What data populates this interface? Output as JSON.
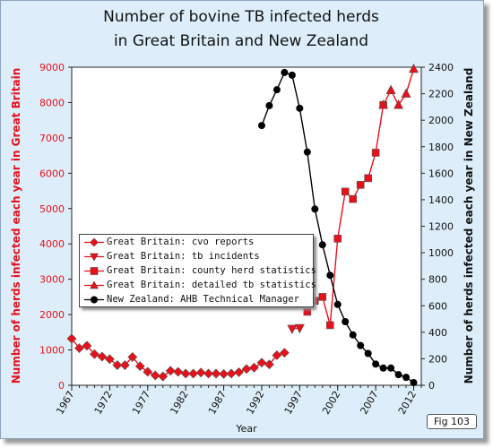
{
  "title": {
    "line1": "Number of bovine TB infected herds",
    "line2": "in Great Britain and New Zealand"
  },
  "figure_label": "Fig 103",
  "colors": {
    "gb": "#e8101a",
    "nz": "#000000",
    "background": "#ddeefa"
  },
  "chart_data": {
    "type": "line",
    "title": "Number of bovine TB infected herds in Great Britain and New Zealand",
    "xlabel": "Year",
    "ylabel_left": "Number of herds infected each year in Great Britain",
    "ylabel_right": "Number of herds infected each year in New Zealand",
    "xlim": [
      1967,
      2013
    ],
    "x_ticks": [
      1967,
      1972,
      1977,
      1982,
      1987,
      1992,
      1997,
      2002,
      2007,
      2012
    ],
    "ylim_left": [
      0,
      9000
    ],
    "y_ticks_left": [
      0,
      1000,
      2000,
      3000,
      4000,
      5000,
      6000,
      7000,
      8000,
      9000
    ],
    "ylim_right": [
      0,
      2400
    ],
    "y_ticks_right": [
      0,
      200,
      400,
      600,
      800,
      1000,
      1200,
      1400,
      1600,
      1800,
      2000,
      2200,
      2400
    ],
    "grid": false,
    "legend_position": "center-left",
    "series": [
      {
        "name": "Great Britain: cvo reports",
        "axis": "left",
        "marker": "diamond",
        "color": "#e8101a",
        "x": [
          1967,
          1968,
          1969,
          1970,
          1971,
          1972,
          1973,
          1974,
          1975,
          1976,
          1977,
          1978,
          1979,
          1980,
          1981,
          1982,
          1983,
          1984,
          1985,
          1986,
          1987,
          1988,
          1989,
          1990,
          1991,
          1992,
          1993,
          1994,
          1995
        ],
        "y": [
          1320,
          1050,
          1120,
          880,
          810,
          740,
          570,
          570,
          800,
          540,
          380,
          280,
          250,
          410,
          380,
          330,
          330,
          360,
          330,
          330,
          320,
          330,
          370,
          460,
          500,
          640,
          590,
          850,
          920
        ]
      },
      {
        "name": "Great Britain: tb incidents",
        "axis": "left",
        "marker": "triangle-down",
        "color": "#e8101a",
        "x": [
          1996,
          1997
        ],
        "y": [
          1600,
          1620
        ]
      },
      {
        "name": "Great Britain: county herd statistics",
        "axis": "left",
        "marker": "square",
        "color": "#e8101a",
        "x": [
          1998,
          1999,
          2000,
          2001,
          2002,
          2003,
          2004,
          2005,
          2006,
          2007,
          2008
        ],
        "y": [
          2080,
          2390,
          2500,
          1700,
          4150,
          5480,
          5270,
          5670,
          5860,
          6580,
          7930
        ]
      },
      {
        "name": "Great Britain: detailed tb statistics",
        "axis": "left",
        "marker": "triangle-up",
        "color": "#e8101a",
        "x": [
          2008,
          2009,
          2010,
          2011,
          2012
        ],
        "y": [
          7930,
          8350,
          7930,
          8250,
          8950
        ]
      },
      {
        "name": "New Zealand: AHB Technical Manager",
        "axis": "right",
        "marker": "circle",
        "color": "#000000",
        "x": [
          1992,
          1993,
          1994,
          1995,
          1996,
          1997,
          1998,
          1999,
          2000,
          2001,
          2002,
          2003,
          2004,
          2005,
          2006,
          2007,
          2008,
          2009,
          2010,
          2011,
          2012
        ],
        "y": [
          1960,
          2110,
          2230,
          2360,
          2340,
          2090,
          1760,
          1330,
          1060,
          830,
          610,
          480,
          380,
          300,
          240,
          160,
          130,
          130,
          80,
          60,
          20
        ]
      }
    ]
  }
}
